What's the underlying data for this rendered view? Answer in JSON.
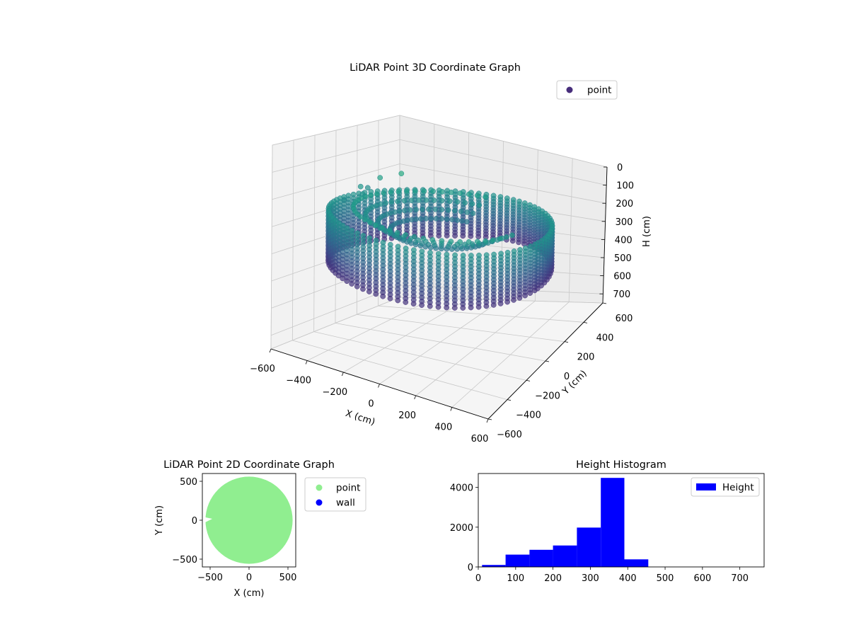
{
  "chart_data": [
    {
      "type": "scatter",
      "projection": "3d",
      "title": "LiDAR Point 3D Coordinate Graph",
      "xlabel": "X (cm)",
      "ylabel": "Y (cm)",
      "zlabel": "H (cm)",
      "xlim": [
        -600,
        600
      ],
      "ylim": [
        -600,
        600
      ],
      "zlim": [
        0,
        750
      ],
      "z_inverted": true,
      "xticks": [
        "−600",
        "−400",
        "−200",
        "0",
        "200",
        "400",
        "600"
      ],
      "yticks": [
        "−600",
        "−400",
        "−200",
        "0",
        "200",
        "400",
        "600"
      ],
      "zticks": [
        "0",
        "100",
        "200",
        "300",
        "400",
        "500",
        "600",
        "700"
      ],
      "legend": {
        "placement": "top-right",
        "entries": [
          "point"
        ]
      },
      "colormap": "viridis",
      "legend_color": "#472d7b",
      "description": "cylindrical wall of points, radius ~550 cm, heights ~250-450 cm, sampled every ~4 degrees",
      "wall_radius": 550,
      "wall_height_range": [
        250,
        450
      ],
      "grid": true
    },
    {
      "type": "scatter",
      "title": "LiDAR Point 2D Coordinate Graph",
      "xlabel": "X (cm)",
      "ylabel": "Y (cm)",
      "xlim": [
        -600,
        600
      ],
      "ylim": [
        -600,
        600
      ],
      "xticks": [
        "−500",
        "0",
        "500"
      ],
      "yticks": [
        "500",
        "0",
        "−500"
      ],
      "series": [
        {
          "name": "point",
          "color": "#90ee90",
          "region": "disk",
          "radius": 560
        },
        {
          "name": "wall",
          "color": "#0000ff",
          "region": "none"
        }
      ],
      "legend": {
        "placement": "outside-right"
      },
      "grid": false
    },
    {
      "type": "bar",
      "subtype": "histogram",
      "title": "Height Histogram",
      "xlabel": "",
      "ylabel": "",
      "bins": [
        {
          "x0": 10,
          "x1": 73,
          "count": 100
        },
        {
          "x0": 73,
          "x1": 137,
          "count": 620
        },
        {
          "x0": 137,
          "x1": 200,
          "count": 860
        },
        {
          "x0": 200,
          "x1": 264,
          "count": 1080
        },
        {
          "x0": 264,
          "x1": 328,
          "count": 1980
        },
        {
          "x0": 328,
          "x1": 391,
          "count": 4480
        },
        {
          "x0": 391,
          "x1": 455,
          "count": 380
        },
        {
          "x0": 455,
          "x1": 518,
          "count": 0
        },
        {
          "x0": 518,
          "x1": 582,
          "count": 0
        },
        {
          "x0": 582,
          "x1": 645,
          "count": 0
        },
        {
          "x0": 645,
          "x1": 709,
          "count": 0
        }
      ],
      "xlim": [
        0,
        765
      ],
      "ylim": [
        0,
        4700
      ],
      "xticks": [
        0,
        100,
        200,
        300,
        400,
        500,
        600,
        700
      ],
      "yticks": [
        0,
        2000,
        4000
      ],
      "color": "#0000ff",
      "legend": {
        "placement": "top-right",
        "entries": [
          "Height"
        ]
      },
      "grid": false
    }
  ]
}
